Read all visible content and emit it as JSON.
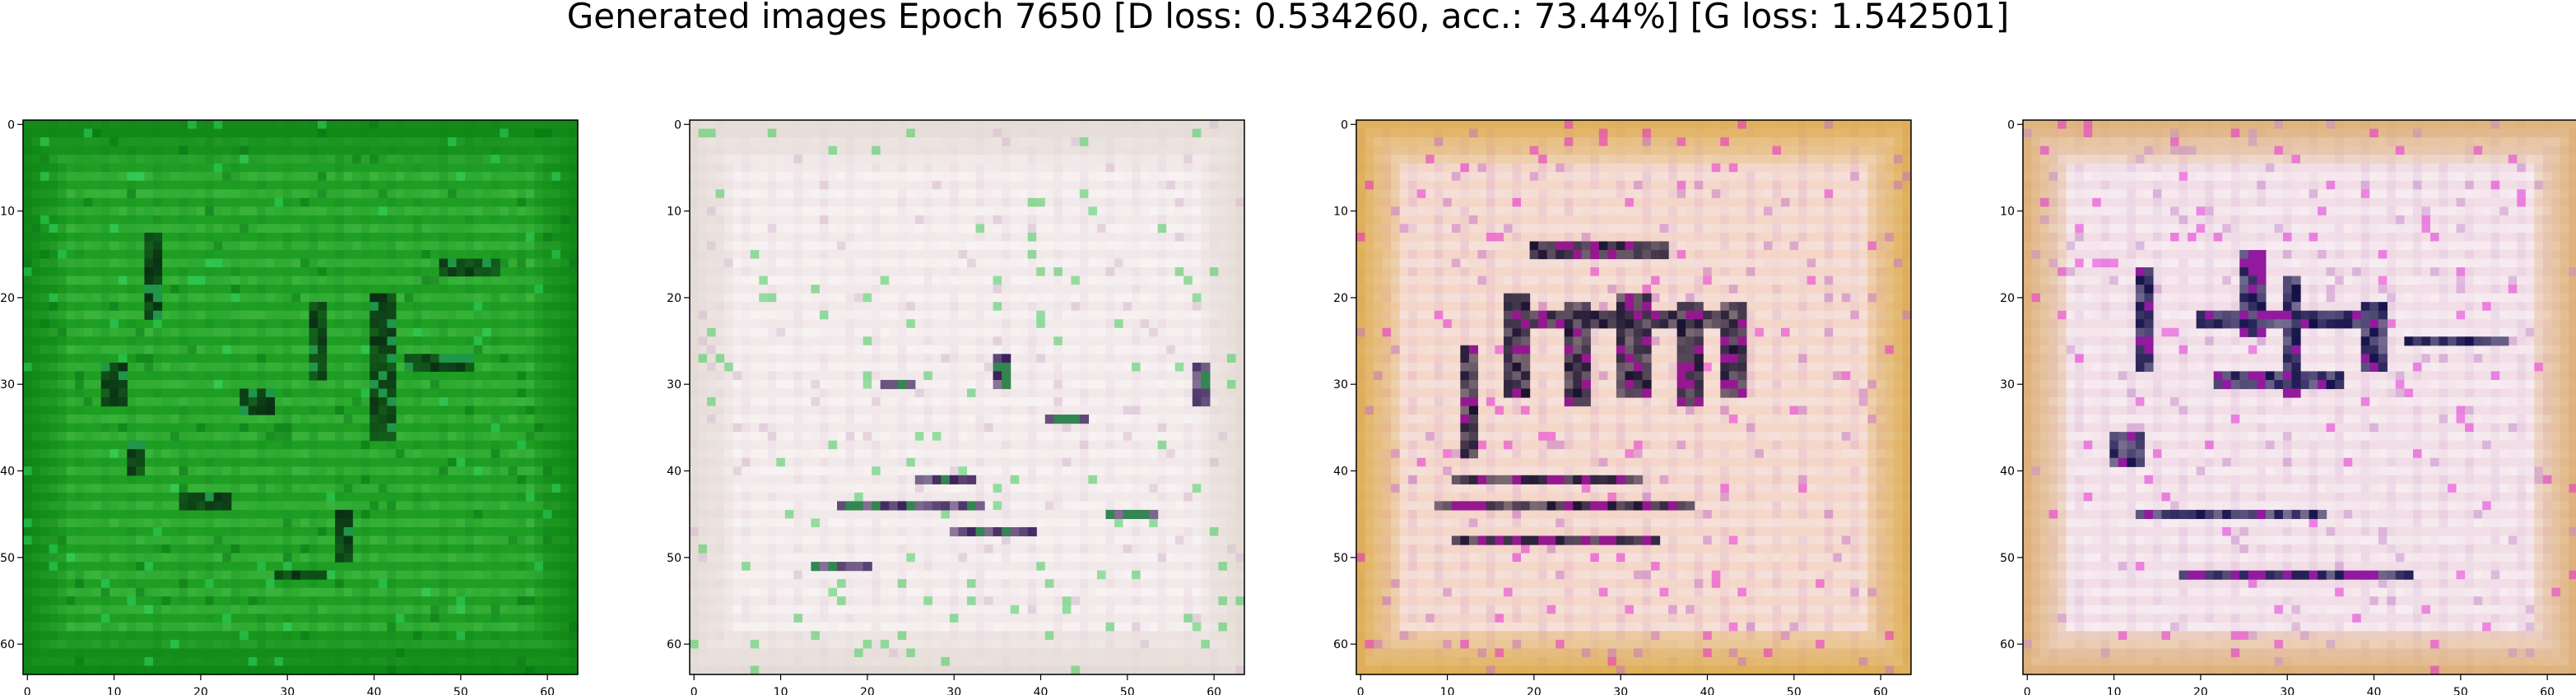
{
  "figure": {
    "title": "Generated images Epoch 7650 [D loss: 0.534260, acc.: 73.44%] [G loss: 1.542501]"
  },
  "chart_data": [
    {
      "type": "heatmap",
      "title": "",
      "xlabel": "",
      "ylabel": "",
      "xlim": [
        -0.5,
        63.5
      ],
      "ylim": [
        63.5,
        -0.5
      ],
      "xticks": [
        0,
        10,
        20,
        30,
        40,
        50,
        60
      ],
      "yticks": [
        0,
        10,
        20,
        30,
        40,
        50,
        60
      ],
      "grid": false,
      "palette": {
        "base": "#1e9e23",
        "border": "#0b7f12",
        "stripe_light": "#5ccf5a",
        "stripe_dark": "#087214",
        "ink": "#0a2e14",
        "accent": "#2fdc6a"
      },
      "strokes": [
        {
          "x": 14,
          "y": 13,
          "w": 2,
          "h": 10
        },
        {
          "x": 25,
          "y": 31,
          "w": 4,
          "h": 3
        },
        {
          "x": 40,
          "y": 20,
          "w": 3,
          "h": 17
        },
        {
          "x": 12,
          "y": 37,
          "w": 2,
          "h": 4
        },
        {
          "x": 48,
          "y": 16,
          "w": 7,
          "h": 2
        },
        {
          "x": 18,
          "y": 43,
          "w": 6,
          "h": 2
        },
        {
          "x": 33,
          "y": 21,
          "w": 2,
          "h": 9
        },
        {
          "x": 9,
          "y": 28,
          "w": 3,
          "h": 5
        },
        {
          "x": 44,
          "y": 27,
          "w": 8,
          "h": 2
        },
        {
          "x": 36,
          "y": 45,
          "w": 2,
          "h": 6
        },
        {
          "x": 29,
          "y": 52,
          "w": 6,
          "h": 1
        }
      ]
    },
    {
      "type": "heatmap",
      "title": "",
      "xlabel": "",
      "ylabel": "",
      "xlim": [
        -0.5,
        63.5
      ],
      "ylim": [
        63.5,
        -0.5
      ],
      "xticks": [
        0,
        10,
        20,
        30,
        40,
        50,
        60
      ],
      "yticks": [
        0,
        10,
        20,
        30,
        40,
        50,
        60
      ],
      "grid": false,
      "palette": {
        "base": "#f2e9ea",
        "border": "#e0d7cf",
        "stripe_light": "#ffffff",
        "stripe_dark": "#d4b7cf",
        "ink": "#3a1f5a",
        "accent": "#2ec94b"
      },
      "strokes": [
        {
          "x": 17,
          "y": 44,
          "w": 17,
          "h": 1
        },
        {
          "x": 14,
          "y": 51,
          "w": 7,
          "h": 1
        },
        {
          "x": 30,
          "y": 47,
          "w": 10,
          "h": 1
        },
        {
          "x": 35,
          "y": 27,
          "w": 2,
          "h": 4
        },
        {
          "x": 58,
          "y": 28,
          "w": 2,
          "h": 5
        },
        {
          "x": 22,
          "y": 30,
          "w": 4,
          "h": 1
        },
        {
          "x": 41,
          "y": 34,
          "w": 5,
          "h": 1
        },
        {
          "x": 26,
          "y": 41,
          "w": 7,
          "h": 1
        },
        {
          "x": 48,
          "y": 45,
          "w": 6,
          "h": 1
        }
      ]
    },
    {
      "type": "heatmap",
      "title": "",
      "xlabel": "",
      "ylabel": "",
      "xlim": [
        -0.5,
        63.5
      ],
      "ylim": [
        63.5,
        -0.5
      ],
      "xticks": [
        0,
        10,
        20,
        30,
        40,
        50,
        60
      ],
      "yticks": [
        0,
        10,
        20,
        30,
        40,
        50,
        60
      ],
      "grid": false,
      "palette": {
        "base": "#f4d7c9",
        "border": "#d9a336",
        "stripe_light": "#f6eef0",
        "stripe_dark": "#c46ec4",
        "ink": "#1b1230",
        "accent": "#e81cd0"
      },
      "strokes": [
        {
          "x": 17,
          "y": 20,
          "w": 3,
          "h": 12
        },
        {
          "x": 24,
          "y": 21,
          "w": 3,
          "h": 12
        },
        {
          "x": 30,
          "y": 20,
          "w": 4,
          "h": 12
        },
        {
          "x": 37,
          "y": 21,
          "w": 3,
          "h": 12
        },
        {
          "x": 42,
          "y": 21,
          "w": 3,
          "h": 11
        },
        {
          "x": 18,
          "y": 22,
          "w": 24,
          "h": 2
        },
        {
          "x": 9,
          "y": 44,
          "w": 30,
          "h": 1
        },
        {
          "x": 11,
          "y": 41,
          "w": 22,
          "h": 1
        },
        {
          "x": 12,
          "y": 26,
          "w": 2,
          "h": 13
        },
        {
          "x": 20,
          "y": 14,
          "w": 16,
          "h": 2
        },
        {
          "x": 11,
          "y": 48,
          "w": 24,
          "h": 1
        }
      ]
    },
    {
      "type": "heatmap",
      "title": "",
      "xlabel": "",
      "ylabel": "",
      "xlim": [
        -0.5,
        63.5
      ],
      "ylim": [
        63.5,
        -0.5
      ],
      "xticks": [
        0,
        10,
        20,
        30,
        40,
        50,
        60
      ],
      "yticks": [
        0,
        10,
        20,
        30,
        40,
        50,
        60
      ],
      "grid": false,
      "palette": {
        "base": "#f1dee6",
        "border": "#d9a45a",
        "stripe_light": "#ffffff",
        "stripe_dark": "#c58acb",
        "ink": "#13104a",
        "accent": "#e520d8"
      },
      "strokes": [
        {
          "x": 20,
          "y": 22,
          "w": 22,
          "h": 2
        },
        {
          "x": 22,
          "y": 29,
          "w": 15,
          "h": 2
        },
        {
          "x": 13,
          "y": 17,
          "w": 2,
          "h": 12
        },
        {
          "x": 30,
          "y": 18,
          "w": 2,
          "h": 14
        },
        {
          "x": 39,
          "y": 21,
          "w": 3,
          "h": 8
        },
        {
          "x": 13,
          "y": 45,
          "w": 22,
          "h": 1
        },
        {
          "x": 10,
          "y": 36,
          "w": 4,
          "h": 4
        },
        {
          "x": 44,
          "y": 25,
          "w": 12,
          "h": 1
        },
        {
          "x": 18,
          "y": 52,
          "w": 27,
          "h": 1
        },
        {
          "x": 25,
          "y": 15,
          "w": 3,
          "h": 10
        }
      ]
    }
  ]
}
